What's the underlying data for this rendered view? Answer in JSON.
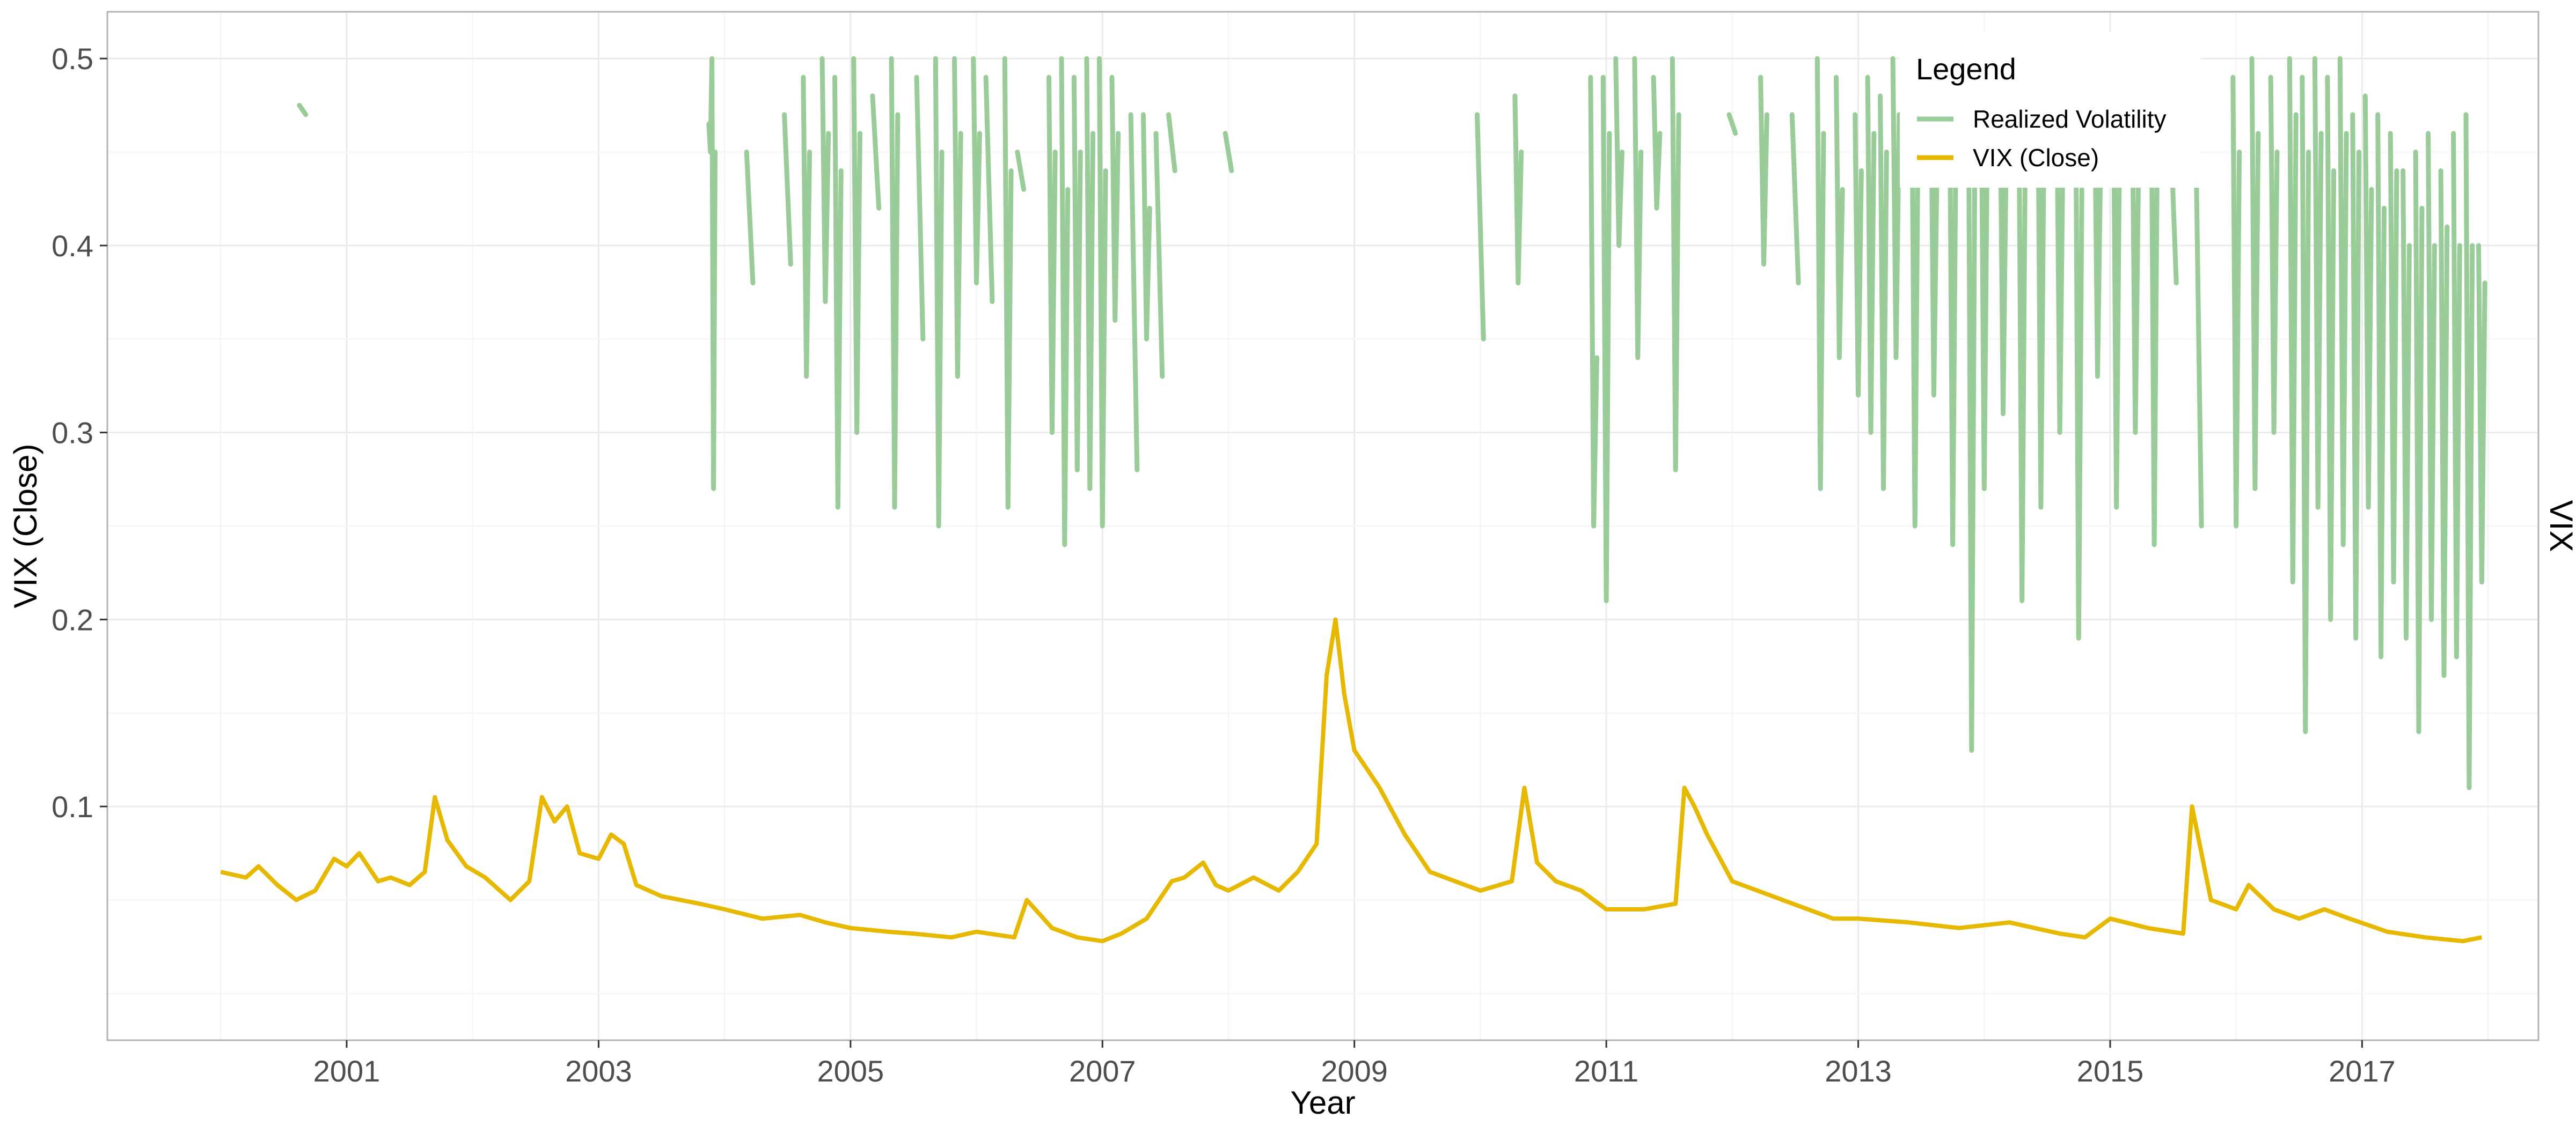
{
  "chart_data": {
    "type": "line",
    "title": "",
    "xlabel": "Year",
    "ylabel": "VIX (Close)",
    "secondary_ylabel": "VIX",
    "x_range": [
      1999.1,
      2018.4
    ],
    "ylim": [
      -0.025,
      0.525
    ],
    "x_ticks": [
      2001,
      2003,
      2005,
      2007,
      2009,
      2011,
      2013,
      2015,
      2017
    ],
    "x_tick_labels": [
      "2001",
      "2003",
      "2005",
      "2007",
      "2009",
      "2011",
      "2013",
      "2015",
      "2017"
    ],
    "y_ticks": [
      0.1,
      0.2,
      0.3,
      0.4,
      0.5
    ],
    "y_tick_labels": [
      "0.1",
      "0.2",
      "0.3",
      "0.4",
      "0.5"
    ],
    "grid": true,
    "legend": {
      "title": "Legend",
      "position": "top-right",
      "entries": [
        "Realized Volatility",
        "VIX (Close)"
      ]
    },
    "series": [
      {
        "name": "VIX (Close)",
        "color": "#E6B800",
        "x": [
          2000.0,
          2000.2,
          2000.3,
          2000.45,
          2000.6,
          2000.75,
          2000.9,
          2001.0,
          2001.1,
          2001.25,
          2001.35,
          2001.5,
          2001.62,
          2001.7,
          2001.8,
          2001.95,
          2002.1,
          2002.3,
          2002.45,
          2002.55,
          2002.65,
          2002.75,
          2002.85,
          2003.0,
          2003.1,
          2003.2,
          2003.3,
          2003.5,
          2003.8,
          2004.0,
          2004.3,
          2004.6,
          2004.8,
          2005.0,
          2005.3,
          2005.5,
          2005.8,
          2006.0,
          2006.3,
          2006.4,
          2006.6,
          2006.8,
          2007.0,
          2007.15,
          2007.35,
          2007.55,
          2007.65,
          2007.8,
          2007.9,
          2008.0,
          2008.2,
          2008.4,
          2008.55,
          2008.7,
          2008.78,
          2008.85,
          2008.92,
          2009.0,
          2009.1,
          2009.2,
          2009.4,
          2009.6,
          2009.8,
          2010.0,
          2010.25,
          2010.35,
          2010.45,
          2010.6,
          2010.8,
          2011.0,
          2011.3,
          2011.55,
          2011.62,
          2011.7,
          2011.8,
          2012.0,
          2012.2,
          2012.4,
          2012.6,
          2012.8,
          2013.0,
          2013.4,
          2013.8,
          2014.2,
          2014.6,
          2014.8,
          2015.0,
          2015.3,
          2015.58,
          2015.65,
          2015.8,
          2016.0,
          2016.1,
          2016.3,
          2016.5,
          2016.7,
          2016.9,
          2017.2,
          2017.5,
          2017.8,
          2017.95
        ],
        "values": [
          0.065,
          0.062,
          0.068,
          0.058,
          0.05,
          0.055,
          0.072,
          0.068,
          0.075,
          0.06,
          0.062,
          0.058,
          0.065,
          0.105,
          0.082,
          0.068,
          0.062,
          0.05,
          0.06,
          0.105,
          0.092,
          0.1,
          0.075,
          0.072,
          0.085,
          0.08,
          0.058,
          0.052,
          0.048,
          0.045,
          0.04,
          0.042,
          0.038,
          0.035,
          0.033,
          0.032,
          0.03,
          0.033,
          0.03,
          0.05,
          0.035,
          0.03,
          0.028,
          0.032,
          0.04,
          0.06,
          0.062,
          0.07,
          0.058,
          0.055,
          0.062,
          0.055,
          0.065,
          0.08,
          0.17,
          0.2,
          0.16,
          0.13,
          0.12,
          0.11,
          0.085,
          0.065,
          0.06,
          0.055,
          0.06,
          0.11,
          0.07,
          0.06,
          0.055,
          0.045,
          0.045,
          0.048,
          0.11,
          0.1,
          0.085,
          0.06,
          0.055,
          0.05,
          0.045,
          0.04,
          0.04,
          0.038,
          0.035,
          0.038,
          0.032,
          0.03,
          0.04,
          0.035,
          0.032,
          0.1,
          0.05,
          0.045,
          0.058,
          0.045,
          0.04,
          0.045,
          0.04,
          0.033,
          0.03,
          0.028,
          0.03
        ]
      },
      {
        "name": "Realized Volatility",
        "color": "#99CC99",
        "segments": [
          {
            "x": 2000.65,
            "values": [
              0.475,
              0.47
            ]
          },
          {
            "x": 2003.9,
            "values": [
              0.465,
              0.45,
              0.5,
              0.27,
              0.45
            ]
          },
          {
            "x": 2004.2,
            "values": [
              0.45,
              0.38
            ]
          },
          {
            "x": 2004.5,
            "values": [
              0.47,
              0.39
            ]
          },
          {
            "x": 2004.65,
            "values": [
              0.49,
              0.33,
              0.45
            ]
          },
          {
            "x": 2004.8,
            "values": [
              0.5,
              0.37,
              0.46
            ]
          },
          {
            "x": 2004.9,
            "values": [
              0.49,
              0.26,
              0.44
            ]
          },
          {
            "x": 2005.05,
            "values": [
              0.5,
              0.3,
              0.46
            ]
          },
          {
            "x": 2005.2,
            "values": [
              0.48,
              0.42
            ]
          },
          {
            "x": 2005.35,
            "values": [
              0.5,
              0.26,
              0.47
            ]
          },
          {
            "x": 2005.55,
            "values": [
              0.49,
              0.35
            ]
          },
          {
            "x": 2005.7,
            "values": [
              0.5,
              0.25,
              0.45
            ]
          },
          {
            "x": 2005.85,
            "values": [
              0.5,
              0.33,
              0.46
            ]
          },
          {
            "x": 2006.0,
            "values": [
              0.5,
              0.38,
              0.46
            ]
          },
          {
            "x": 2006.1,
            "values": [
              0.49,
              0.37
            ]
          },
          {
            "x": 2006.25,
            "values": [
              0.5,
              0.26,
              0.44
            ]
          },
          {
            "x": 2006.35,
            "values": [
              0.45,
              0.43
            ]
          },
          {
            "x": 2006.6,
            "values": [
              0.49,
              0.3,
              0.45
            ]
          },
          {
            "x": 2006.7,
            "values": [
              0.5,
              0.24,
              0.43
            ]
          },
          {
            "x": 2006.8,
            "values": [
              0.49,
              0.28,
              0.45
            ]
          },
          {
            "x": 2006.9,
            "values": [
              0.5,
              0.27,
              0.46
            ]
          },
          {
            "x": 2007.0,
            "values": [
              0.5,
              0.25,
              0.44
            ]
          },
          {
            "x": 2007.1,
            "values": [
              0.49,
              0.36,
              0.46
            ]
          },
          {
            "x": 2007.25,
            "values": [
              0.47,
              0.28
            ]
          },
          {
            "x": 2007.35,
            "values": [
              0.47,
              0.35,
              0.42
            ]
          },
          {
            "x": 2007.45,
            "values": [
              0.46,
              0.33
            ]
          },
          {
            "x": 2007.55,
            "values": [
              0.47,
              0.44
            ]
          },
          {
            "x": 2008.0,
            "values": [
              0.46,
              0.44
            ]
          },
          {
            "x": 2010.0,
            "values": [
              0.47,
              0.35
            ]
          },
          {
            "x": 2010.3,
            "values": [
              0.48,
              0.38,
              0.45
            ]
          },
          {
            "x": 2010.9,
            "values": [
              0.49,
              0.25,
              0.34
            ]
          },
          {
            "x": 2011.0,
            "values": [
              0.49,
              0.21,
              0.46
            ]
          },
          {
            "x": 2011.1,
            "values": [
              0.5,
              0.4,
              0.45
            ]
          },
          {
            "x": 2011.25,
            "values": [
              0.5,
              0.34,
              0.45
            ]
          },
          {
            "x": 2011.4,
            "values": [
              0.49,
              0.42,
              0.46
            ]
          },
          {
            "x": 2011.55,
            "values": [
              0.5,
              0.28,
              0.47
            ]
          },
          {
            "x": 2012.0,
            "values": [
              0.47,
              0.46
            ]
          },
          {
            "x": 2012.25,
            "values": [
              0.49,
              0.39,
              0.47
            ]
          },
          {
            "x": 2012.5,
            "values": [
              0.47,
              0.38
            ]
          },
          {
            "x": 2012.7,
            "values": [
              0.5,
              0.27,
              0.46
            ]
          },
          {
            "x": 2012.85,
            "values": [
              0.49,
              0.34,
              0.43
            ]
          },
          {
            "x": 2013.0,
            "values": [
              0.47,
              0.32,
              0.44
            ]
          },
          {
            "x": 2013.1,
            "values": [
              0.49,
              0.3,
              0.46
            ]
          },
          {
            "x": 2013.2,
            "values": [
              0.48,
              0.27,
              0.45
            ]
          },
          {
            "x": 2013.3,
            "values": [
              0.5,
              0.34,
              0.47
            ]
          },
          {
            "x": 2013.45,
            "values": [
              0.49,
              0.25,
              0.46
            ]
          },
          {
            "x": 2013.6,
            "values": [
              0.5,
              0.32,
              0.44
            ]
          },
          {
            "x": 2013.75,
            "values": [
              0.49,
              0.24,
              0.45
            ]
          },
          {
            "x": 2013.9,
            "values": [
              0.49,
              0.13,
              0.44
            ]
          },
          {
            "x": 2014.0,
            "values": [
              0.5,
              0.27,
              0.46
            ]
          },
          {
            "x": 2014.15,
            "values": [
              0.49,
              0.31,
              0.45
            ]
          },
          {
            "x": 2014.3,
            "values": [
              0.48,
              0.21,
              0.44
            ]
          },
          {
            "x": 2014.45,
            "values": [
              0.5,
              0.26,
              0.46
            ]
          },
          {
            "x": 2014.6,
            "values": [
              0.49,
              0.3,
              0.45
            ]
          },
          {
            "x": 2014.75,
            "values": [
              0.5,
              0.19,
              0.43
            ]
          },
          {
            "x": 2014.9,
            "values": [
              0.49,
              0.33,
              0.45
            ]
          },
          {
            "x": 2015.05,
            "values": [
              0.5,
              0.26,
              0.46
            ]
          },
          {
            "x": 2015.2,
            "values": [
              0.48,
              0.3,
              0.44
            ]
          },
          {
            "x": 2015.35,
            "values": [
              0.5,
              0.24,
              0.46
            ]
          },
          {
            "x": 2015.5,
            "values": [
              0.47,
              0.38
            ]
          },
          {
            "x": 2015.7,
            "values": [
              0.48,
              0.25
            ]
          },
          {
            "x": 2016.0,
            "values": [
              0.49,
              0.25,
              0.45
            ]
          },
          {
            "x": 2016.15,
            "values": [
              0.5,
              0.27,
              0.46
            ]
          },
          {
            "x": 2016.3,
            "values": [
              0.49,
              0.3,
              0.45
            ]
          },
          {
            "x": 2016.45,
            "values": [
              0.5,
              0.22,
              0.47
            ]
          },
          {
            "x": 2016.55,
            "values": [
              0.49,
              0.14,
              0.45
            ]
          },
          {
            "x": 2016.65,
            "values": [
              0.5,
              0.26,
              0.46
            ]
          },
          {
            "x": 2016.75,
            "values": [
              0.49,
              0.2,
              0.44
            ]
          },
          {
            "x": 2016.85,
            "values": [
              0.5,
              0.24,
              0.46
            ]
          },
          {
            "x": 2016.95,
            "values": [
              0.47,
              0.19,
              0.45
            ]
          },
          {
            "x": 2017.05,
            "values": [
              0.48,
              0.26,
              0.43
            ]
          },
          {
            "x": 2017.15,
            "values": [
              0.47,
              0.18,
              0.42
            ]
          },
          {
            "x": 2017.25,
            "values": [
              0.46,
              0.22,
              0.44
            ]
          },
          {
            "x": 2017.35,
            "values": [
              0.44,
              0.19,
              0.4
            ]
          },
          {
            "x": 2017.45,
            "values": [
              0.45,
              0.14,
              0.42
            ]
          },
          {
            "x": 2017.55,
            "values": [
              0.46,
              0.2,
              0.4
            ]
          },
          {
            "x": 2017.65,
            "values": [
              0.44,
              0.17,
              0.41
            ]
          },
          {
            "x": 2017.75,
            "values": [
              0.46,
              0.18,
              0.4
            ]
          },
          {
            "x": 2017.85,
            "values": [
              0.47,
              0.11,
              0.4
            ]
          },
          {
            "x": 2017.95,
            "values": [
              0.4,
              0.22,
              0.38
            ]
          }
        ]
      }
    ]
  }
}
